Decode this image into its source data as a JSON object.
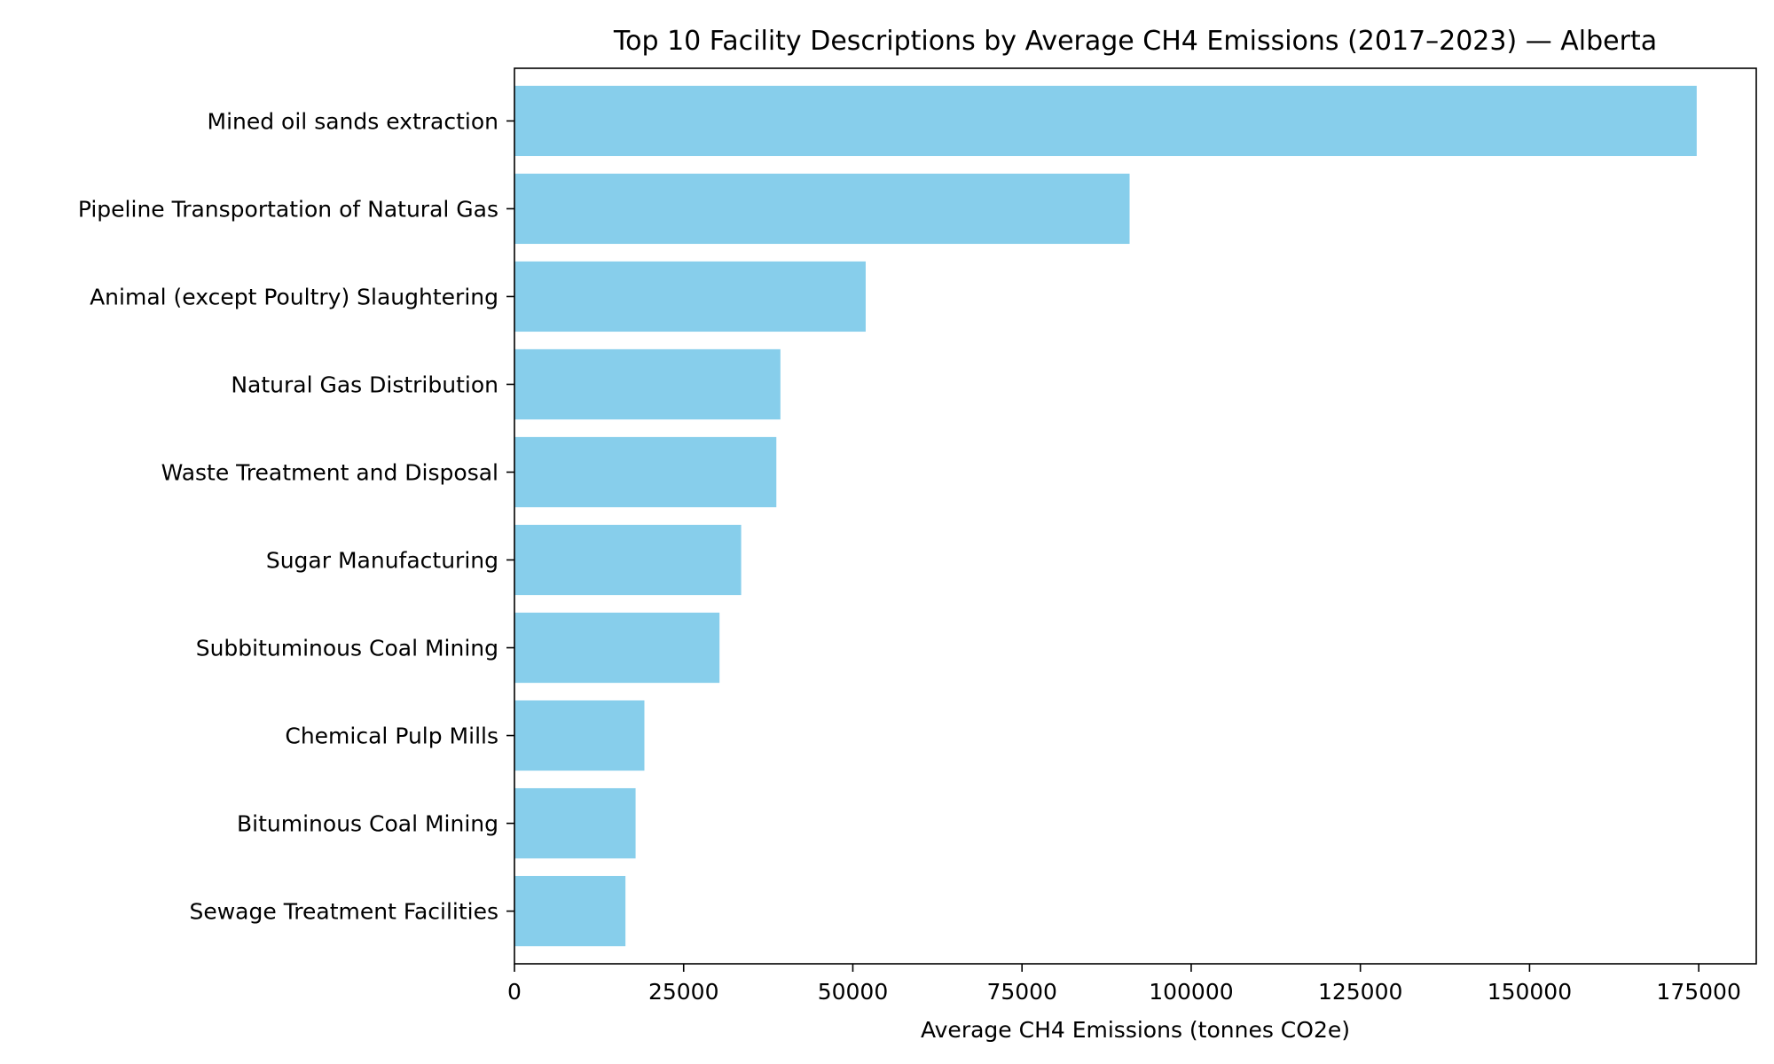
{
  "chart_data": {
    "type": "bar",
    "orientation": "horizontal",
    "title": "Top 10 Facility Descriptions by Average CH4 Emissions (2017–2023) — Alberta",
    "xlabel": "Average CH4 Emissions (tonnes CO2e)",
    "ylabel": "",
    "categories": [
      "Mined oil sands extraction",
      "Pipeline Transportation of Natural Gas",
      "Animal (except Poultry) Slaughtering",
      "Natural Gas Distribution",
      "Waste Treatment and Disposal",
      "Sugar Manufacturing",
      "Subbituminous Coal Mining",
      "Chemical Pulp Mills",
      "Bituminous Coal Mining",
      "Sewage Treatment Facilities"
    ],
    "values": [
      174700,
      90900,
      51900,
      39300,
      38700,
      33500,
      30300,
      19200,
      17900,
      16400
    ],
    "xlim": [
      0,
      183500
    ],
    "xticks": [
      0,
      25000,
      50000,
      75000,
      100000,
      125000,
      150000,
      175000
    ],
    "xtick_labels": [
      "0",
      "25000",
      "50000",
      "75000",
      "100000",
      "125000",
      "150000",
      "175000"
    ],
    "bar_color": "#87ceeb",
    "grid": false,
    "legend": "none"
  }
}
